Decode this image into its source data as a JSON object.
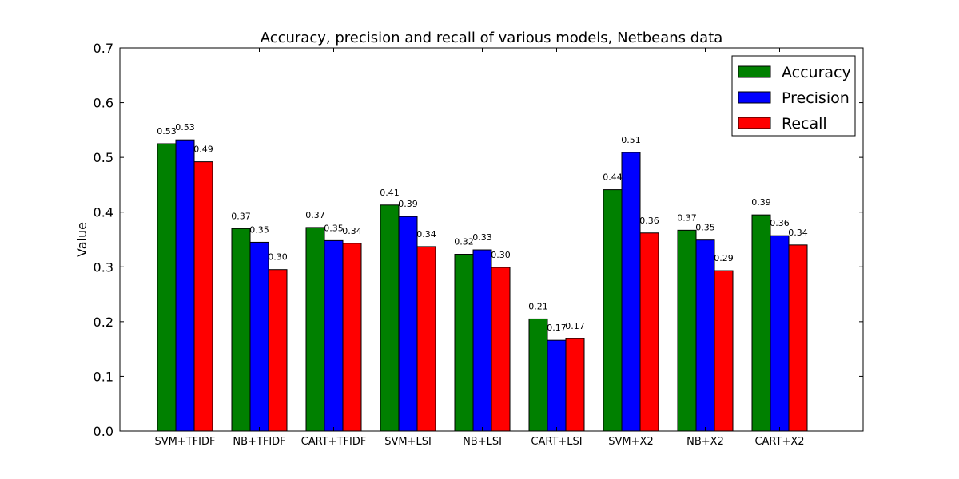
{
  "chart_data": {
    "type": "bar",
    "title": "Accuracy, precision and recall of various models, Netbeans data",
    "xlabel": "",
    "ylabel": "Value",
    "ylim": [
      0,
      0.7
    ],
    "yticks": [
      "0.0",
      "0.1",
      "0.2",
      "0.3",
      "0.4",
      "0.5",
      "0.6",
      "0.7"
    ],
    "categories": [
      "SVM+TFIDF",
      "NB+TFIDF",
      "CART+TFIDF",
      "SVM+LSI",
      "NB+LSI",
      "CART+LSI",
      "SVM+X2",
      "NB+X2",
      "CART+X2"
    ],
    "series": [
      {
        "name": "Accuracy",
        "color": "#008000",
        "values": [
          0.525,
          0.37,
          0.372,
          0.413,
          0.323,
          0.205,
          0.441,
          0.367,
          0.395
        ],
        "labels": [
          "0.53",
          "0.37",
          "0.37",
          "0.41",
          "0.32",
          "0.21",
          "0.44",
          "0.37",
          "0.39"
        ]
      },
      {
        "name": "Precision",
        "color": "#0000ff",
        "values": [
          0.532,
          0.345,
          0.348,
          0.392,
          0.331,
          0.166,
          0.509,
          0.349,
          0.357
        ],
        "labels": [
          "0.53",
          "0.35",
          "0.35",
          "0.39",
          "0.33",
          "0.17",
          "0.51",
          "0.35",
          "0.36"
        ]
      },
      {
        "name": "Recall",
        "color": "#ff0000",
        "values": [
          0.492,
          0.295,
          0.343,
          0.337,
          0.299,
          0.169,
          0.362,
          0.293,
          0.34
        ],
        "labels": [
          "0.49",
          "0.30",
          "0.34",
          "0.34",
          "0.30",
          "0.17",
          "0.36",
          "0.29",
          "0.34"
        ]
      }
    ],
    "legend": "top-right",
    "grid": false
  }
}
